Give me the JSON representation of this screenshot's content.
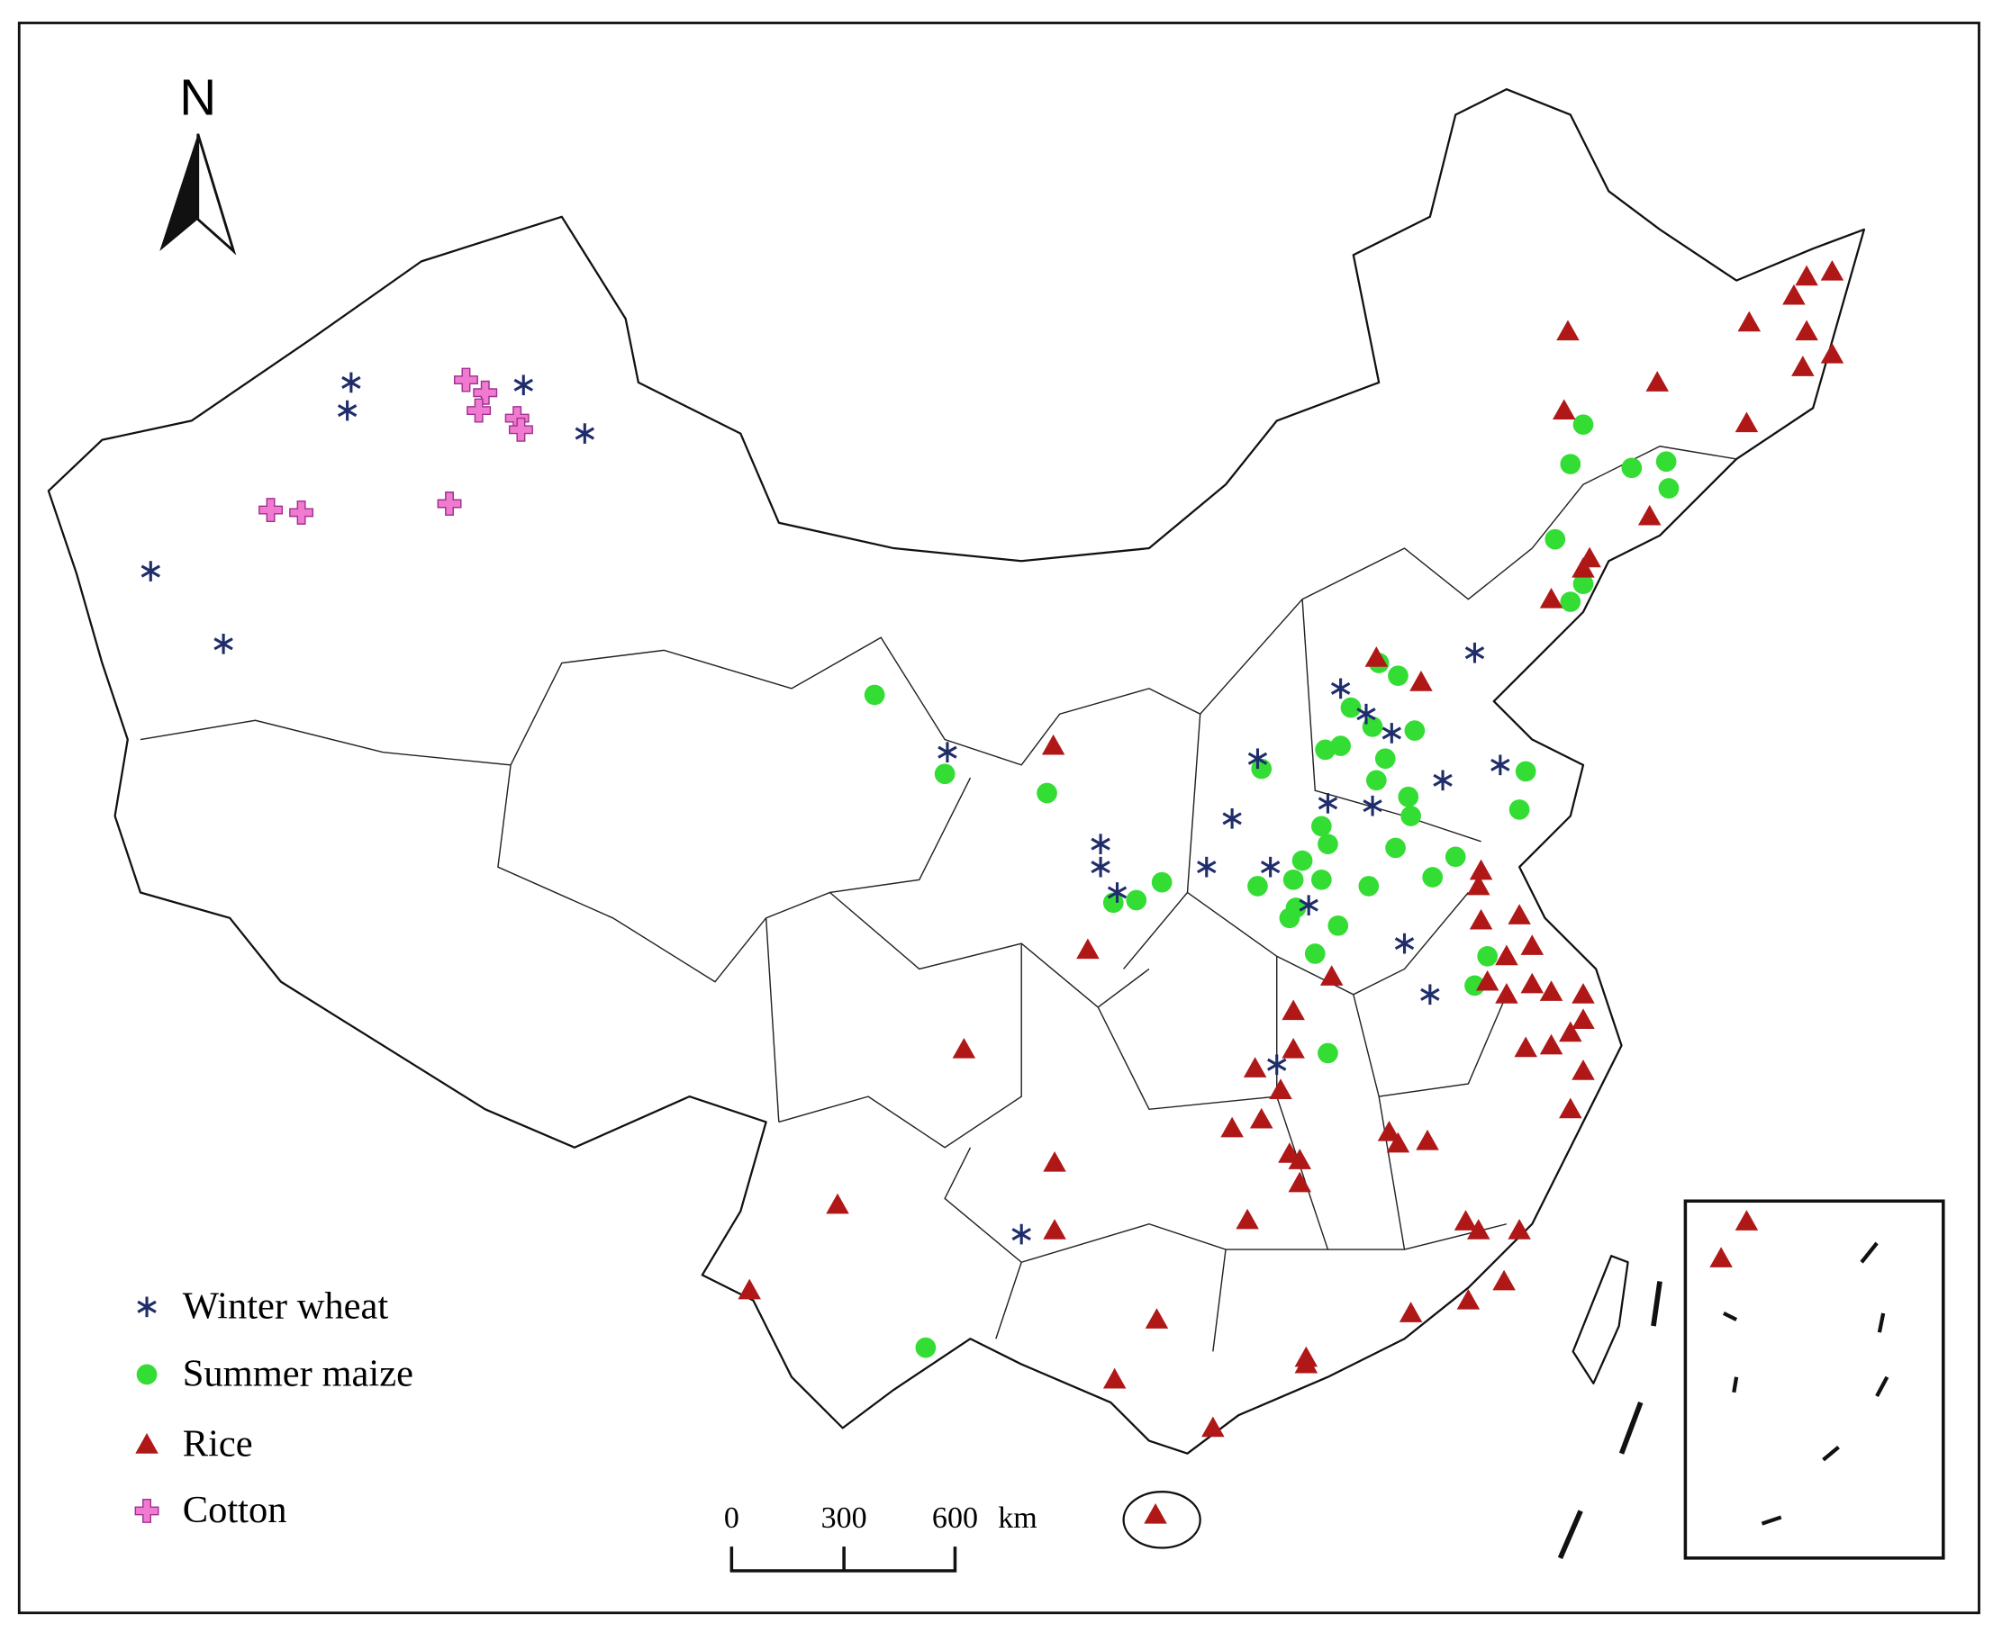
{
  "map": {
    "north_label": "N",
    "legend": [
      "Winter wheat",
      "Summer maize",
      "Rice",
      "Cotton"
    ],
    "scale_bar": {
      "ticks": [
        0,
        300,
        600
      ],
      "unit": "km"
    }
  }
}
